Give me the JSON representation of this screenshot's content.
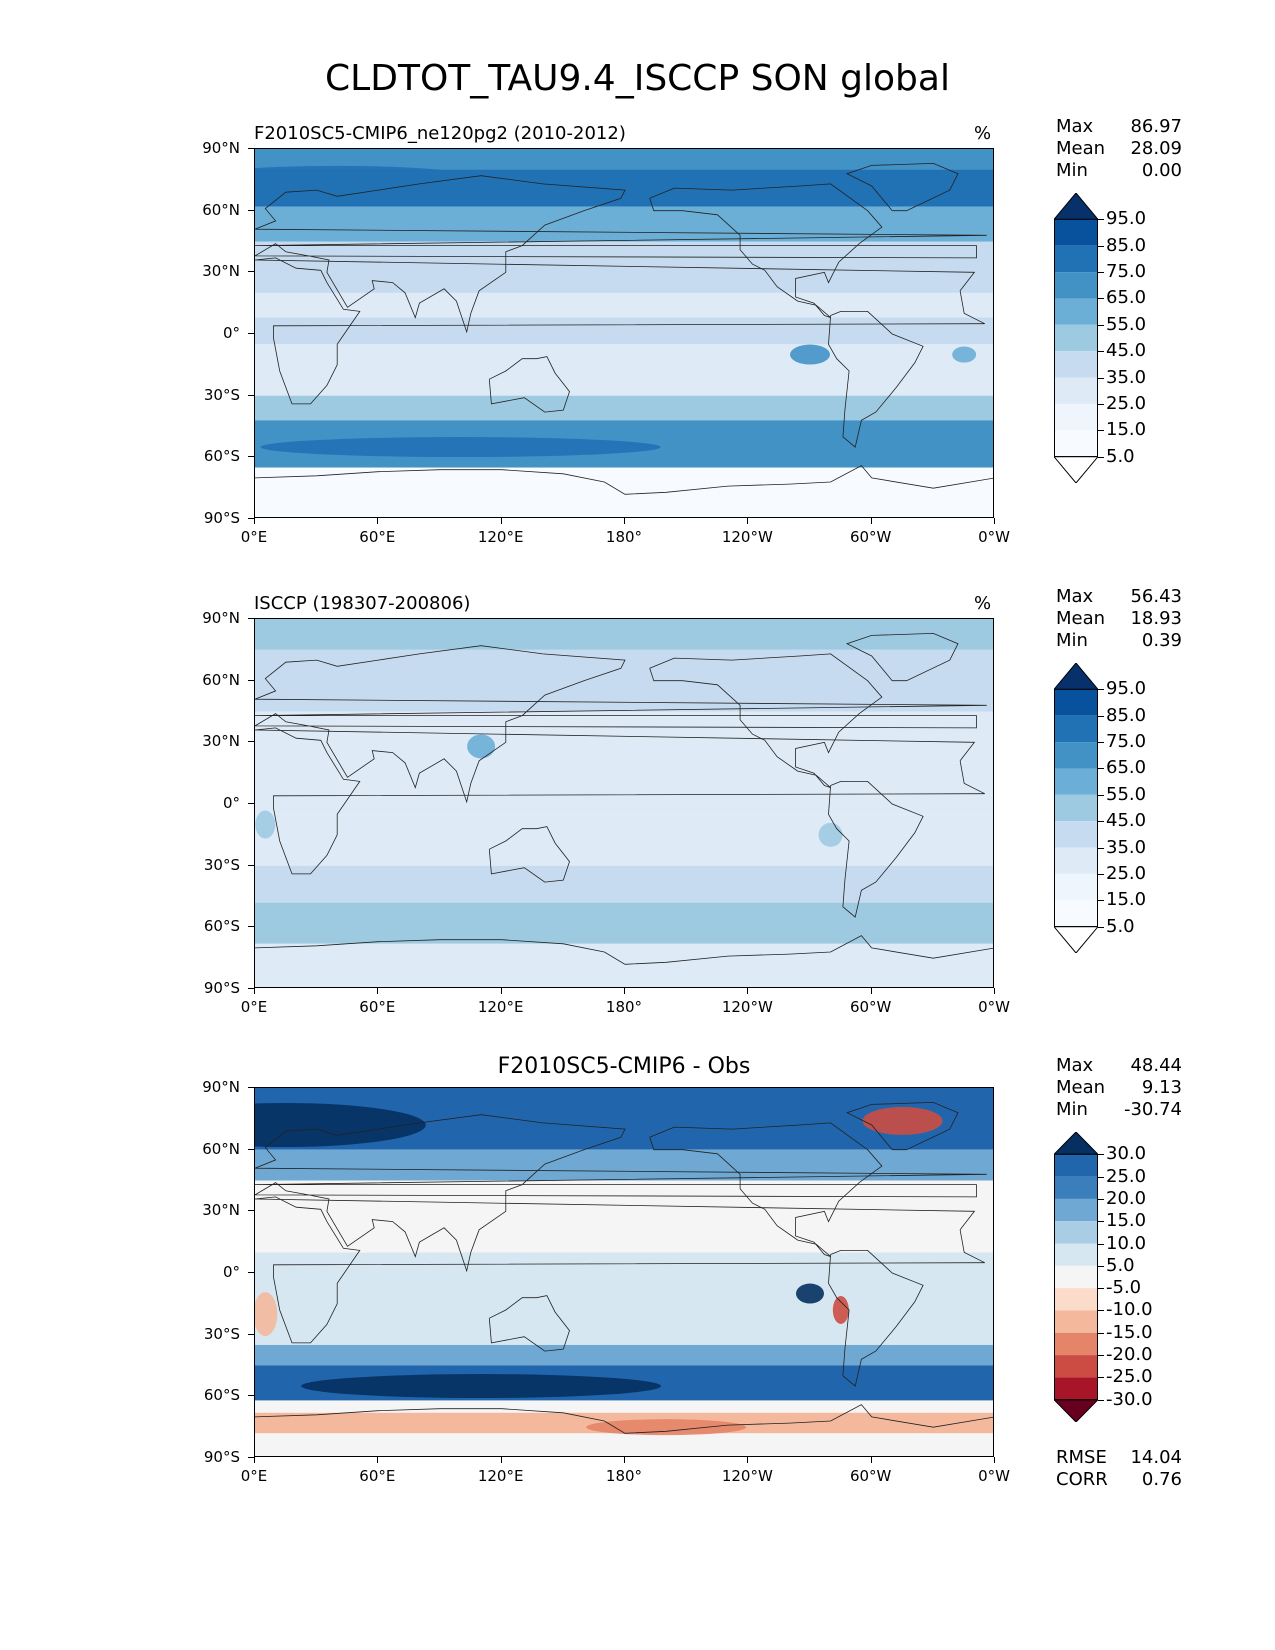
{
  "title": "CLDTOT_TAU9.4_ISCCP SON global",
  "panels": [
    {
      "title": "F2010SC5-CMIP6_ne120pg2 (2010-2012)",
      "units": "%",
      "stats": {
        "max_label": "Max",
        "max": "86.97",
        "mean_label": "Mean",
        "mean": "28.09",
        "min_label": "Min",
        "min": "0.00"
      }
    },
    {
      "title": "ISCCP (198307-200806)",
      "units": "%",
      "stats": {
        "max_label": "Max",
        "max": "56.43",
        "mean_label": "Mean",
        "mean": "18.93",
        "min_label": "Min",
        "min": "0.39"
      }
    },
    {
      "title": "F2010SC5-CMIP6 - Obs",
      "units": "",
      "stats": {
        "max_label": "Max",
        "max": "48.44",
        "mean_label": "Mean",
        "mean": "9.13",
        "min_label": "Min",
        "min": "-30.74"
      },
      "rmse_label": "RMSE",
      "rmse": "14.04",
      "corr_label": "CORR",
      "corr": "0.76"
    }
  ],
  "lat_labels": [
    "90°N",
    "60°N",
    "30°N",
    "0°",
    "30°S",
    "60°S",
    "90°S"
  ],
  "lon_labels": [
    "0°E",
    "60°E",
    "120°E",
    "180°",
    "120°W",
    "60°W",
    "0°W"
  ],
  "colorbars": {
    "abs": {
      "labels": [
        "95.0",
        "85.0",
        "75.0",
        "65.0",
        "55.0",
        "45.0",
        "35.0",
        "25.0",
        "15.0",
        "5.0"
      ],
      "colors": [
        "#08306b",
        "#08519c",
        "#2171b5",
        "#4292c6",
        "#6baed6",
        "#9ecae1",
        "#c6dbef",
        "#deebf7",
        "#eef5fc",
        "#f7fbff",
        "#ffffff"
      ]
    },
    "diff": {
      "labels": [
        "30.0",
        "25.0",
        "20.0",
        "15.0",
        "10.0",
        "5.0",
        "-5.0",
        "-10.0",
        "-15.0",
        "-20.0",
        "-25.0",
        "-30.0"
      ],
      "colors": [
        "#053061",
        "#2166ac",
        "#3a7fbc",
        "#6fa8d2",
        "#a9cde4",
        "#d6e7f1",
        "#f5f5f5",
        "#fbdccb",
        "#f4b89c",
        "#e48468",
        "#cc4c43",
        "#a81529",
        "#67001f"
      ]
    }
  }
}
